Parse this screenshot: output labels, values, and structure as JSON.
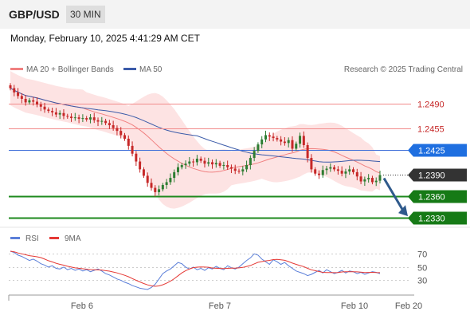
{
  "header": {
    "symbol": "GBP/USD",
    "timeframe": "30 MIN"
  },
  "timestamp": "Monday, February 10, 2025 4:41:29 AM CET",
  "colors": {
    "up": "#2e7d32",
    "down": "#c62828",
    "bollinger_fill": "#fde3e3",
    "ma20": "#f08080",
    "ma50": "#3b5ba9",
    "resistance": "#f28b8b",
    "pivot": "#3f6fd9",
    "support": "#1e8a1e",
    "current": "#333333",
    "arrow": "#2f5a8c",
    "rsi": "#5b7fd9",
    "rsi_ma": "#e53935"
  },
  "chart_data": [
    {
      "type": "candlestick",
      "title": "GBP/USD 30 MIN",
      "legend": [
        "MA 20 + Bollinger Bands",
        "MA 50"
      ],
      "legend_placement": "top-left",
      "watermark": "Research © 2025 Trading Central",
      "x_tick_labels": [
        "Feb 6",
        "Feb 7",
        "Feb 10",
        "Feb 20"
      ],
      "ylim": [
        1.232,
        1.2535
      ],
      "candle_closes": [
        1.2512,
        1.2506,
        1.2501,
        1.2497,
        1.2492,
        1.2495,
        1.2493,
        1.2489,
        1.2486,
        1.2482,
        1.248,
        1.2478,
        1.2475,
        1.2477,
        1.2473,
        1.2472,
        1.247,
        1.2471,
        1.2469,
        1.247,
        1.2468,
        1.2471,
        1.2467,
        1.2465,
        1.2466,
        1.2463,
        1.246,
        1.2456,
        1.2452,
        1.2446,
        1.2441,
        1.2431,
        1.242,
        1.2409,
        1.2398,
        1.2389,
        1.2379,
        1.2372,
        1.2366,
        1.237,
        1.2376,
        1.238,
        1.2386,
        1.2394,
        1.2401,
        1.2404,
        1.2406,
        1.2409,
        1.2408,
        1.2413,
        1.241,
        1.2406,
        1.2408,
        1.2405,
        1.2407,
        1.2403,
        1.2404,
        1.2401,
        1.2399,
        1.2396,
        1.2395,
        1.2398,
        1.2404,
        1.2414,
        1.2424,
        1.2433,
        1.244,
        1.2446,
        1.2444,
        1.2442,
        1.244,
        1.2437,
        1.2435,
        1.2439,
        1.2427,
        1.2434,
        1.2445,
        1.2432,
        1.2414,
        1.2398,
        1.2392,
        1.239,
        1.2397,
        1.2399,
        1.2401,
        1.2398,
        1.2396,
        1.2392,
        1.2395,
        1.2398,
        1.2394,
        1.2388,
        1.2381,
        1.2384,
        1.2386,
        1.238,
        1.2382,
        1.239
      ],
      "levels": [
        {
          "label": "1.2490",
          "value": 1.249,
          "kind": "resistance"
        },
        {
          "label": "1.2455",
          "value": 1.2455,
          "kind": "resistance"
        },
        {
          "label": "1.2425",
          "value": 1.2425,
          "kind": "pivot"
        },
        {
          "label": "1.2390",
          "value": 1.239,
          "kind": "current"
        },
        {
          "label": "1.2360",
          "value": 1.236,
          "kind": "support"
        },
        {
          "label": "1.2330",
          "value": 1.233,
          "kind": "support"
        }
      ],
      "forecast_arrow": {
        "from": 1.239,
        "to": 1.233
      }
    },
    {
      "type": "line",
      "legend": [
        "RSI",
        "9MA"
      ],
      "ylim": [
        10,
        80
      ],
      "y_tick_labels": [
        "70",
        "50",
        "30"
      ],
      "rsi": [
        74,
        72,
        68,
        66,
        63,
        60,
        62,
        59,
        55,
        53,
        50,
        52,
        48,
        47,
        50,
        46,
        48,
        45,
        47,
        44,
        46,
        43,
        45,
        47,
        44,
        40,
        38,
        35,
        32,
        30,
        27,
        25,
        22,
        20,
        18,
        17,
        16,
        19,
        24,
        32,
        40,
        44,
        47,
        52,
        57,
        55,
        50,
        47,
        50,
        46,
        48,
        45,
        49,
        47,
        51,
        48,
        46,
        52,
        49,
        47,
        50,
        55,
        60,
        64,
        70,
        68,
        62,
        58,
        54,
        61,
        58,
        54,
        57,
        52,
        48,
        44,
        42,
        40,
        37,
        39,
        42,
        45,
        41,
        46,
        43,
        40,
        42,
        45,
        41,
        44,
        43,
        40,
        42,
        39,
        41,
        43,
        42,
        40
      ]
    }
  ]
}
